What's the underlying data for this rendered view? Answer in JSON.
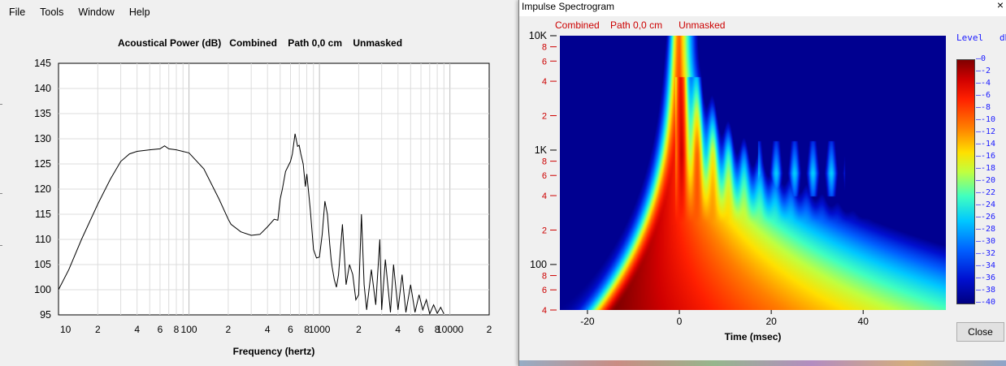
{
  "main_window": {
    "menu": [
      "File",
      "Tools",
      "Window",
      "Help"
    ],
    "chart_title": "Acoustical Power (dB)   Combined    Path 0,0 cm    Unmasked",
    "x_label": "Frequency (hertz)",
    "y_ticks": [
      "145",
      "140",
      "135",
      "130",
      "125",
      "120",
      "115",
      "110",
      "105",
      "100",
      "95"
    ],
    "x_ticks": [
      "10",
      "2",
      "4",
      "6",
      "8",
      "100",
      "2",
      "4",
      "6",
      "8",
      "1000",
      "2",
      "4",
      "6",
      "8",
      "10000",
      "2"
    ]
  },
  "spectrogram_window": {
    "title": "Impulse Spectrogram",
    "close_x": "×",
    "subtitle": "Combined    Path 0,0 cm      Unmasked",
    "y_ticks": [
      "10K",
      "8",
      "6",
      "4",
      "2",
      "1K",
      "8",
      "6",
      "4",
      "2",
      "100",
      "8",
      "6",
      "4"
    ],
    "x_ticks": [
      "-20",
      "0",
      "20",
      "40"
    ],
    "x_label": "Time (msec)",
    "level_label": "Level   dB",
    "colorbar_ticks": [
      "0",
      "-2",
      "-4",
      "-6",
      "-8",
      "-10",
      "-12",
      "-14",
      "-16",
      "-18",
      "-20",
      "-22",
      "-24",
      "-26",
      "-28",
      "-30",
      "-32",
      "-34",
      "-36",
      "-38",
      "-40"
    ],
    "close_button": "Close"
  },
  "chart_data": [
    {
      "type": "line",
      "title": "Acoustical Power (dB)   Combined    Path 0,0 cm    Unmasked",
      "xlabel": "Frequency (hertz)",
      "ylabel": "",
      "x_scale": "log",
      "xlim": [
        10,
        20000
      ],
      "ylim": [
        95,
        145
      ],
      "grid": true,
      "series": [
        {
          "x": [
            10,
            12,
            15,
            20,
            25,
            30,
            35,
            40,
            50,
            60,
            65,
            70,
            80,
            100,
            130,
            170,
            200,
            210,
            250,
            300,
            350,
            400,
            450,
            480,
            500,
            520,
            550,
            600,
            620,
            650,
            680,
            700,
            720,
            750,
            780,
            800,
            850,
            900,
            950,
            1000,
            1050,
            1100,
            1150,
            1200,
            1230,
            1250,
            1300,
            1350,
            1400,
            1450,
            1500,
            1550,
            1600,
            1700,
            1800,
            1900,
            2000,
            2100,
            2200,
            2300,
            2500,
            2700,
            2900,
            3000,
            3200,
            3500,
            3700,
            4000,
            4300,
            4600,
            5000,
            5400,
            5800,
            6200,
            6600,
            7000,
            7500,
            8000,
            8500,
            9000
          ],
          "values": [
            100,
            104,
            110,
            117,
            122,
            125.5,
            127,
            127.5,
            127.8,
            128,
            128.6,
            128,
            127.8,
            127.2,
            124,
            118,
            114,
            113,
            111.5,
            110.8,
            111,
            112.5,
            114,
            113.8,
            118,
            120,
            123.5,
            125.5,
            127,
            131,
            128.5,
            128.7,
            127,
            125,
            120.5,
            123,
            116,
            108,
            106.3,
            106.5,
            111,
            117.6,
            115,
            109,
            106,
            104.5,
            102,
            100.5,
            103,
            108,
            113,
            107,
            101,
            105,
            103,
            98,
            99,
            115,
            101,
            96,
            104,
            97,
            110,
            96,
            106,
            95.5,
            105,
            96,
            103,
            95.5,
            101,
            95.5,
            99,
            96,
            98,
            95.2,
            97,
            95.3,
            96.5,
            95.2
          ]
        }
      ]
    },
    {
      "type": "heatmap",
      "title": "Impulse Spectrogram",
      "subtitle": "Combined    Path 0,0 cm      Unmasked",
      "xlabel": "Time (msec)",
      "ylabel": "",
      "xlim": [
        -26,
        58
      ],
      "ylim": [
        40,
        10000
      ],
      "y_scale": "log",
      "colorbar_label": "Level   dB",
      "colorbar_range": [
        -40,
        0
      ],
      "ridge_tip_hz": 500,
      "ridge_max_hz": 10000,
      "peak_level_db": 0,
      "peak_time_ms": 4,
      "peak_freq_hz": 60
    }
  ]
}
